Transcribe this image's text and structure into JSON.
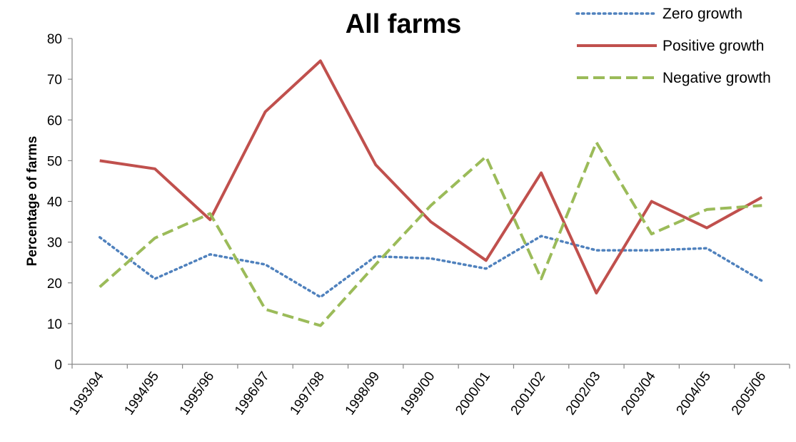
{
  "chart_data": {
    "type": "line",
    "title": "All farms",
    "ylabel": "Percentage of farms",
    "xlabel": "",
    "ylim": [
      0,
      80
    ],
    "yticks": [
      0,
      10,
      20,
      30,
      40,
      50,
      60,
      70,
      80
    ],
    "grid": false,
    "legend_position": "top-right",
    "categories": [
      "1993/94",
      "1994/95",
      "1995/96",
      "1996/97",
      "1997/98",
      "1998/99",
      "1999/00",
      "2000/01",
      "2001/02",
      "2002/03",
      "2003/04",
      "2004/05",
      "2005/06"
    ],
    "series": [
      {
        "name": "Zero growth",
        "style": "dotted",
        "color": "#4F81BD",
        "values": [
          31.2,
          21,
          27,
          24.5,
          16.5,
          26.5,
          26,
          23.5,
          31.5,
          28,
          28,
          28.5,
          20.5
        ]
      },
      {
        "name": "Positive growth",
        "style": "solid",
        "color": "#C0504D",
        "values": [
          50,
          48,
          35.5,
          62,
          74.5,
          49,
          35,
          25.5,
          47,
          17.5,
          40,
          33.5,
          41
        ]
      },
      {
        "name": "Negative growth",
        "style": "dashed",
        "color": "#9BBB59",
        "values": [
          19,
          31,
          37,
          13.5,
          9.5,
          24.5,
          39,
          51,
          21,
          54.5,
          32,
          38,
          39
        ]
      }
    ]
  }
}
